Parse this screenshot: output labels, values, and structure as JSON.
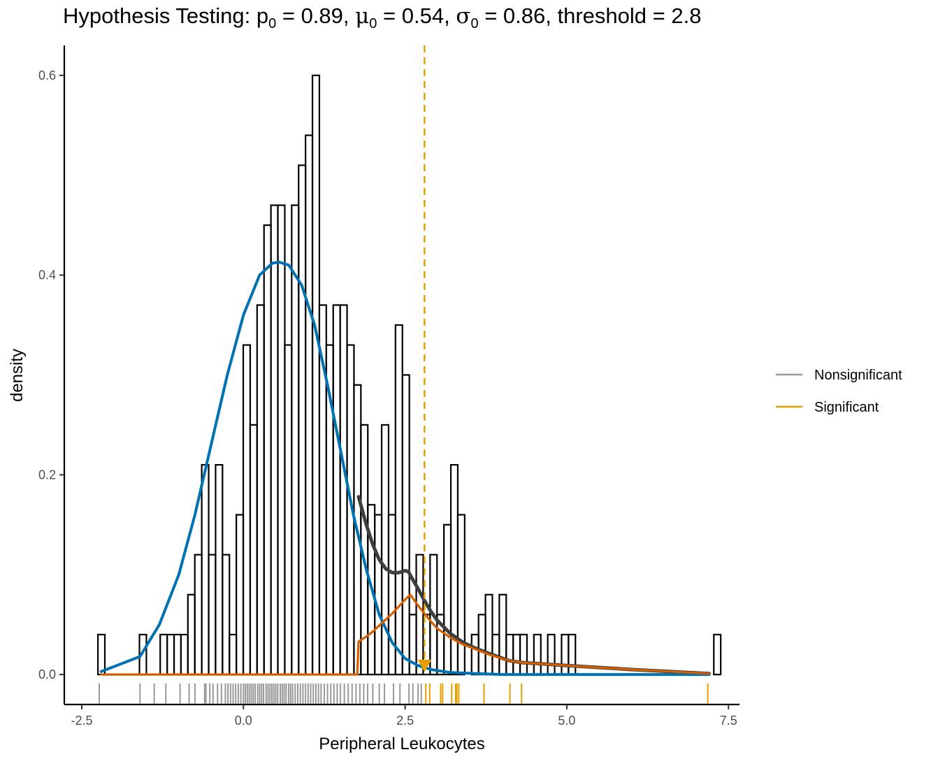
{
  "chart_data": {
    "type": "histogram",
    "title": {
      "prefix": "Hypothesis Testing: ",
      "p_symbol": "p",
      "p_sub": "0",
      "p_value": " = 0.89, ",
      "mu_symbol": "μ",
      "mu_sub": "0",
      "mu_value": " = 0.54, ",
      "sigma_symbol": "σ",
      "sigma_sub": "0",
      "sigma_value": " = 0.86, threshold = 2.8"
    },
    "xlabel": "Peripheral Leukocytes",
    "ylabel": "density",
    "xlim": [
      -2.77,
      7.67
    ],
    "ylim": [
      -0.03,
      0.63
    ],
    "x_ticks": [
      -2.5,
      0.0,
      2.5,
      5.0,
      7.5
    ],
    "x_tick_labels": [
      "-2.5",
      "0.0",
      "2.5",
      "5.0",
      "7.5"
    ],
    "y_ticks": [
      0.0,
      0.2,
      0.4,
      0.6
    ],
    "y_tick_labels": [
      "0.0",
      "0.2",
      "0.4",
      "0.6"
    ],
    "grid": false,
    "legend_position": "right",
    "legend": [
      {
        "label": "Nonsignificant",
        "color": "#999999"
      },
      {
        "label": "Significant",
        "color": "#E69F00"
      }
    ],
    "threshold": 2.8,
    "threshold_color": "#E69F00",
    "histogram": {
      "bin_start": -2.25,
      "bin_width": 0.107,
      "densities": [
        0.04,
        0,
        0,
        0,
        0,
        0,
        0.04,
        0,
        0,
        0.04,
        0.04,
        0.04,
        0.04,
        0.08,
        0.12,
        0.21,
        0.12,
        0.21,
        0.12,
        0.04,
        0.16,
        0.33,
        0.25,
        0.37,
        0.45,
        0.47,
        0.47,
        0.33,
        0.47,
        0.51,
        0.54,
        0.6,
        0.37,
        0.33,
        0.37,
        0.37,
        0.33,
        0.29,
        0.25,
        0.17,
        0.16,
        0.25,
        0.16,
        0.35,
        0.3,
        0.06,
        0.12,
        0.06,
        0.12,
        0.06,
        0.15,
        0.21,
        0.16,
        0,
        0.04,
        0.06,
        0.08,
        0.04,
        0.08,
        0.04,
        0.04,
        0.04,
        0,
        0.04,
        0,
        0.04,
        0,
        0.04,
        0.04,
        0,
        0,
        0,
        0,
        0,
        0,
        0,
        0,
        0,
        0,
        0,
        0,
        0,
        0,
        0,
        0,
        0,
        0,
        0,
        0,
        0.04
      ],
      "color": "#000000"
    },
    "series": [
      {
        "role": "mixture-density",
        "color": "#3f3f3f",
        "x": [
          1.78,
          1.9,
          2.0,
          2.1,
          2.2,
          2.3,
          2.4,
          2.5,
          2.55,
          2.6,
          2.7,
          2.8,
          2.9,
          3.0,
          3.2,
          3.4,
          3.6,
          3.8,
          4.1,
          4.3,
          5.0,
          6.0,
          7.2
        ],
        "y": [
          0.178,
          0.15,
          0.13,
          0.115,
          0.106,
          0.102,
          0.102,
          0.104,
          0.103,
          0.097,
          0.086,
          0.074,
          0.063,
          0.054,
          0.041,
          0.032,
          0.026,
          0.021,
          0.014,
          0.012,
          0.009,
          0.005,
          0.001
        ]
      },
      {
        "role": "null-density",
        "color": "#0072B2",
        "x": [
          -2.2,
          -1.6,
          -1.3,
          -1.0,
          -0.75,
          -0.5,
          -0.25,
          0.0,
          0.25,
          0.45,
          0.55,
          0.7,
          0.9,
          1.1,
          1.3,
          1.5,
          1.7,
          1.9,
          2.1,
          2.3,
          2.5,
          2.7,
          2.9,
          3.2,
          3.6,
          4.0,
          4.5,
          5.0,
          6.0,
          7.2
        ],
        "y": [
          0.003,
          0.018,
          0.05,
          0.1,
          0.16,
          0.23,
          0.3,
          0.36,
          0.4,
          0.412,
          0.413,
          0.41,
          0.39,
          0.35,
          0.29,
          0.225,
          0.16,
          0.105,
          0.06,
          0.032,
          0.016,
          0.009,
          0.005,
          0.002,
          0.001,
          0,
          0,
          0,
          0,
          0
        ]
      },
      {
        "role": "alternative-density",
        "color": "#D55E00",
        "x": [
          -2.2,
          1.76,
          1.78,
          1.9,
          2.0,
          2.1,
          2.2,
          2.3,
          2.4,
          2.5,
          2.58,
          2.7,
          2.8,
          2.9,
          3.0,
          3.2,
          3.4,
          3.6,
          3.8,
          4.1,
          4.3,
          5.0,
          6.0,
          7.2
        ],
        "y": [
          0.0,
          0.0,
          0.033,
          0.038,
          0.043,
          0.049,
          0.055,
          0.061,
          0.068,
          0.075,
          0.08,
          0.069,
          0.061,
          0.053,
          0.046,
          0.037,
          0.03,
          0.025,
          0.02,
          0.014,
          0.012,
          0.009,
          0.005,
          0.001
        ]
      }
    ],
    "marker": {
      "x": 2.8,
      "y": 0.008,
      "shape": "triangle-down",
      "color": "#E69F00"
    },
    "rug": {
      "nonsignificant": [
        -2.23,
        -1.6,
        -1.38,
        -1.2,
        -0.98,
        -0.84,
        -0.75,
        -0.6,
        -0.58,
        -0.52,
        -0.47,
        -0.4,
        -0.34,
        -0.28,
        -0.24,
        -0.2,
        -0.16,
        -0.12,
        -0.08,
        -0.04,
        0.0,
        0.03,
        0.06,
        0.09,
        0.12,
        0.15,
        0.18,
        0.22,
        0.25,
        0.28,
        0.31,
        0.35,
        0.38,
        0.41,
        0.44,
        0.47,
        0.5,
        0.53,
        0.57,
        0.6,
        0.63,
        0.66,
        0.7,
        0.73,
        0.76,
        0.8,
        0.84,
        0.88,
        0.92,
        0.96,
        1.0,
        1.04,
        1.08,
        1.12,
        1.16,
        1.2,
        1.25,
        1.3,
        1.35,
        1.4,
        1.45,
        1.5,
        1.56,
        1.62,
        1.68,
        1.74,
        1.8,
        1.86,
        1.92,
        2.0,
        2.1,
        2.18,
        2.32,
        2.42,
        2.56,
        2.62,
        2.7,
        2.75
      ],
      "significant": [
        2.82,
        2.88,
        3.05,
        3.08,
        3.22,
        3.28,
        3.3,
        3.33,
        3.72,
        4.12,
        4.3,
        7.18
      ]
    }
  }
}
